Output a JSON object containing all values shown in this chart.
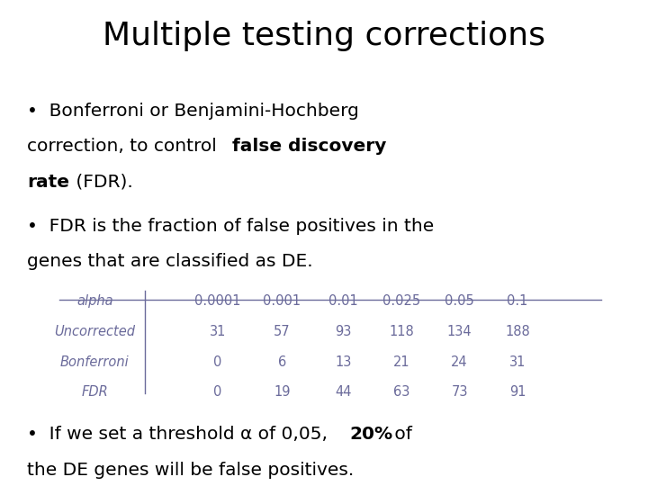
{
  "title": "Multiple testing corrections",
  "title_fontsize": 26,
  "background_color": "#ffffff",
  "text_color": "#000000",
  "table_headers": [
    "alpha",
    "0.0001",
    "0.001",
    "0.01",
    "0.025",
    "0.05",
    "0.1"
  ],
  "table_rows": [
    [
      "Uncorrected",
      "31",
      "57",
      "93",
      "118",
      "134",
      "188"
    ],
    [
      "Bonferroni",
      "0",
      "6",
      "13",
      "21",
      "24",
      "31"
    ],
    [
      "FDR",
      "0",
      "19",
      "44",
      "63",
      "73",
      "91"
    ]
  ],
  "table_color": "#6b6b9b",
  "bullet_fs": 14.5,
  "table_fs": 10.5
}
